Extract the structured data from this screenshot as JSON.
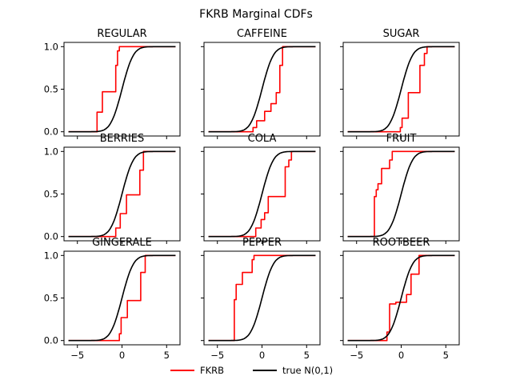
{
  "figure": {
    "title": "FKRB Marginal CDFs",
    "legend": [
      {
        "label": "FKRB",
        "color": "#ff0000"
      },
      {
        "label": "true N(0,1)",
        "color": "#000000"
      }
    ]
  },
  "chart_data": [
    {
      "type": "line",
      "title": "REGULAR",
      "xlim": [
        -6.5,
        6.5
      ],
      "ylim": [
        -0.05,
        1.05
      ],
      "xticks": [
        "-5",
        "0",
        "5"
      ],
      "yticks": [
        "0.0",
        "0.5",
        "1.0"
      ],
      "grid": false,
      "series": [
        {
          "name": "FKRB",
          "color": "#ff0000",
          "steps": [
            [
              -6,
              0
            ],
            [
              -2.8,
              0.23
            ],
            [
              -2.2,
              0.47
            ],
            [
              -0.7,
              0.78
            ],
            [
              -0.5,
              0.95
            ],
            [
              -0.3,
              1.0
            ],
            [
              6,
              1.0
            ]
          ]
        },
        {
          "name": "true N(0,1)",
          "color": "#000000",
          "cdf": "normal"
        }
      ]
    },
    {
      "type": "line",
      "title": "CAFFEINE",
      "xlim": [
        -6.5,
        6.5
      ],
      "ylim": [
        -0.05,
        1.05
      ],
      "xticks": [
        "-5",
        "0",
        "5"
      ],
      "yticks": [
        "0.0",
        "0.5",
        "1.0"
      ],
      "grid": false,
      "series": [
        {
          "name": "FKRB",
          "color": "#ff0000",
          "steps": [
            [
              -6,
              0
            ],
            [
              -1.0,
              0.05
            ],
            [
              -0.6,
              0.13
            ],
            [
              0.3,
              0.24
            ],
            [
              1.0,
              0.33
            ],
            [
              1.6,
              0.46
            ],
            [
              2.0,
              0.78
            ],
            [
              2.3,
              1.0
            ],
            [
              6,
              1.0
            ]
          ]
        },
        {
          "name": "true N(0,1)",
          "color": "#000000",
          "cdf": "normal"
        }
      ]
    },
    {
      "type": "line",
      "title": "SUGAR",
      "xlim": [
        -6.5,
        6.5
      ],
      "ylim": [
        -0.05,
        1.05
      ],
      "xticks": [
        "-5",
        "0",
        "5"
      ],
      "yticks": [
        "0.0",
        "0.5",
        "1.0"
      ],
      "grid": false,
      "series": [
        {
          "name": "FKRB",
          "color": "#ff0000",
          "steps": [
            [
              -6,
              0
            ],
            [
              -0.1,
              0.05
            ],
            [
              0.1,
              0.16
            ],
            [
              0.8,
              0.46
            ],
            [
              2.1,
              0.78
            ],
            [
              2.6,
              0.92
            ],
            [
              2.9,
              1.0
            ],
            [
              6,
              1.0
            ]
          ]
        },
        {
          "name": "true N(0,1)",
          "color": "#000000",
          "cdf": "normal"
        }
      ]
    },
    {
      "type": "line",
      "title": "BERRIES",
      "xlim": [
        -6.5,
        6.5
      ],
      "ylim": [
        -0.05,
        1.05
      ],
      "xticks": [
        "-5",
        "0",
        "5"
      ],
      "yticks": [
        "0.0",
        "0.5",
        "1.0"
      ],
      "grid": false,
      "series": [
        {
          "name": "FKRB",
          "color": "#ff0000",
          "steps": [
            [
              -6,
              0
            ],
            [
              -0.7,
              0.1
            ],
            [
              -0.2,
              0.27
            ],
            [
              0.5,
              0.49
            ],
            [
              2.0,
              0.78
            ],
            [
              2.4,
              1.0
            ],
            [
              6,
              1.0
            ]
          ]
        },
        {
          "name": "true N(0,1)",
          "color": "#000000",
          "cdf": "normal"
        }
      ]
    },
    {
      "type": "line",
      "title": "COLA",
      "xlim": [
        -6.5,
        6.5
      ],
      "ylim": [
        -0.05,
        1.05
      ],
      "xticks": [
        "-5",
        "0",
        "5"
      ],
      "yticks": [
        "0.0",
        "0.5",
        "1.0"
      ],
      "grid": false,
      "series": [
        {
          "name": "FKRB",
          "color": "#ff0000",
          "steps": [
            [
              -6,
              0
            ],
            [
              -0.7,
              0.1
            ],
            [
              -0.1,
              0.2
            ],
            [
              0.3,
              0.28
            ],
            [
              0.7,
              0.47
            ],
            [
              2.6,
              0.82
            ],
            [
              3.0,
              0.9
            ],
            [
              3.3,
              1.0
            ],
            [
              6,
              1.0
            ]
          ]
        },
        {
          "name": "true N(0,1)",
          "color": "#000000",
          "cdf": "normal"
        }
      ]
    },
    {
      "type": "line",
      "title": "FRUIT",
      "xlim": [
        -6.5,
        6.5
      ],
      "ylim": [
        -0.05,
        1.05
      ],
      "xticks": [
        "-5",
        "0",
        "5"
      ],
      "yticks": [
        "0.0",
        "0.5",
        "1.0"
      ],
      "grid": false,
      "series": [
        {
          "name": "FKRB",
          "color": "#ff0000",
          "steps": [
            [
              -6,
              0
            ],
            [
              -3.0,
              0.47
            ],
            [
              -2.8,
              0.55
            ],
            [
              -2.6,
              0.62
            ],
            [
              -2.2,
              0.8
            ],
            [
              -1.3,
              0.9
            ],
            [
              -1.0,
              1.0
            ],
            [
              6,
              1.0
            ]
          ]
        },
        {
          "name": "true N(0,1)",
          "color": "#000000",
          "cdf": "normal"
        }
      ]
    },
    {
      "type": "line",
      "title": "GINGERALE",
      "xlim": [
        -6.5,
        6.5
      ],
      "ylim": [
        -0.05,
        1.05
      ],
      "xticks": [
        "-5",
        "0",
        "5"
      ],
      "yticks": [
        "0.0",
        "0.5",
        "1.0"
      ],
      "grid": false,
      "series": [
        {
          "name": "FKRB",
          "color": "#ff0000",
          "steps": [
            [
              -6,
              0
            ],
            [
              -0.3,
              0.08
            ],
            [
              -0.1,
              0.27
            ],
            [
              0.6,
              0.47
            ],
            [
              2.1,
              0.8
            ],
            [
              2.6,
              1.0
            ],
            [
              6,
              1.0
            ]
          ]
        },
        {
          "name": "true N(0,1)",
          "color": "#000000",
          "cdf": "normal"
        }
      ]
    },
    {
      "type": "line",
      "title": "PEPPER",
      "xlim": [
        -6.5,
        6.5
      ],
      "ylim": [
        -0.05,
        1.05
      ],
      "xticks": [
        "-5",
        "0",
        "5"
      ],
      "yticks": [
        "0.0",
        "0.5",
        "1.0"
      ],
      "grid": false,
      "series": [
        {
          "name": "FKRB",
          "color": "#ff0000",
          "steps": [
            [
              -6,
              0
            ],
            [
              -3.1,
              0.48
            ],
            [
              -2.9,
              0.66
            ],
            [
              -2.2,
              0.8
            ],
            [
              -1.1,
              0.95
            ],
            [
              -0.9,
              1.0
            ],
            [
              6,
              1.0
            ]
          ]
        },
        {
          "name": "true N(0,1)",
          "color": "#000000",
          "cdf": "normal"
        }
      ]
    },
    {
      "type": "line",
      "title": "ROOTBEER",
      "xlim": [
        -6.5,
        6.5
      ],
      "ylim": [
        -0.05,
        1.05
      ],
      "xticks": [
        "-5",
        "0",
        "5"
      ],
      "yticks": [
        "0.0",
        "0.5",
        "1.0"
      ],
      "grid": false,
      "series": [
        {
          "name": "FKRB",
          "color": "#ff0000",
          "steps": [
            [
              -6,
              0
            ],
            [
              -1.6,
              0.1
            ],
            [
              -1.3,
              0.43
            ],
            [
              -0.6,
              0.45
            ],
            [
              0.6,
              0.54
            ],
            [
              1.1,
              0.78
            ],
            [
              2.0,
              1.0
            ],
            [
              6,
              1.0
            ]
          ]
        },
        {
          "name": "true N(0,1)",
          "color": "#000000",
          "cdf": "normal"
        }
      ]
    }
  ]
}
